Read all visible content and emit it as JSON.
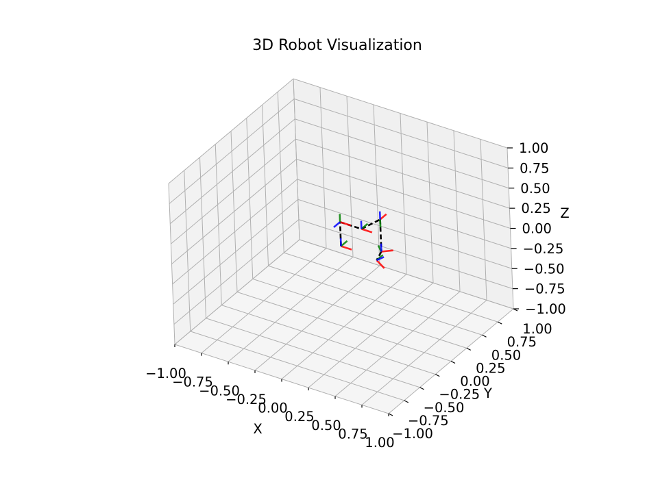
{
  "chart_data": {
    "type": "line",
    "title": "3D Robot Visualization",
    "xlabel": "X",
    "ylabel": "Y",
    "zlabel": "Z",
    "xlim": [
      -1.0,
      1.0
    ],
    "ylim": [
      -1.0,
      1.0
    ],
    "zlim": [
      -1.0,
      1.0
    ],
    "x_ticks": [
      "−1.00",
      "−0.75",
      "−0.50",
      "−0.25",
      "0.00",
      "0.25",
      "0.50",
      "0.75",
      "1.00"
    ],
    "y_ticks": [
      "−1.00",
      "−0.75",
      "−0.50",
      "−0.25",
      "0.00",
      "0.25",
      "0.50",
      "0.75",
      "1.00"
    ],
    "z_ticks": [
      "−1.00",
      "−0.75",
      "−0.50",
      "−0.25",
      "0.00",
      "0.25",
      "0.50",
      "0.75",
      "1.00"
    ],
    "grid": true,
    "colors": {
      "links": "#000000",
      "frame_x": "#ff0000",
      "frame_y": "#008000",
      "frame_z": "#0000ff",
      "pane_left": "#f2f2f2",
      "pane_back": "#f0f0f0",
      "pane_floor": "#f5f5f5",
      "grid": "#b0b0b0"
    },
    "links_style": "dashed",
    "frame_axis_length": 0.1,
    "joints": [
      {
        "x": 0.0,
        "y": 0.0,
        "z": 0.0
      },
      {
        "x": 0.0,
        "y": 0.0,
        "z": 0.3
      },
      {
        "x": 0.2,
        "y": 0.0,
        "z": 0.3
      },
      {
        "x": 0.35,
        "y": 0.05,
        "z": 0.45
      },
      {
        "x": 0.35,
        "y": 0.05,
        "z": 0.05
      },
      {
        "x": 0.32,
        "y": 0.02,
        "z": -0.05
      }
    ],
    "frames": [
      {
        "x": 0.0,
        "y": 0.0,
        "z": 0.0,
        "axes": [
          [
            1,
            0,
            0
          ],
          [
            0,
            1,
            0
          ],
          [
            0,
            0,
            1
          ]
        ]
      },
      {
        "x": 0.0,
        "y": 0.0,
        "z": 0.3,
        "axes": [
          [
            1,
            0,
            0
          ],
          [
            0,
            0,
            1
          ],
          [
            0,
            -1,
            0
          ]
        ]
      },
      {
        "x": 0.2,
        "y": 0.0,
        "z": 0.3,
        "axes": [
          [
            1,
            0,
            0
          ],
          [
            0,
            1,
            0
          ],
          [
            0,
            0,
            1
          ]
        ]
      },
      {
        "x": 0.35,
        "y": 0.05,
        "z": 0.45,
        "axes": [
          [
            0,
            1,
            0
          ],
          [
            0,
            0,
            -1
          ],
          [
            0,
            0,
            1
          ]
        ]
      },
      {
        "x": 0.35,
        "y": 0.05,
        "z": 0.05,
        "axes": [
          [
            0.7,
            0.7,
            0
          ],
          [
            -0.7,
            0.7,
            0
          ],
          [
            0,
            0,
            1
          ]
        ]
      },
      {
        "x": 0.32,
        "y": 0.02,
        "z": -0.05,
        "axes": [
          [
            0.7,
            0,
            -0.7
          ],
          [
            0,
            1,
            0
          ],
          [
            0.7,
            0,
            0.7
          ]
        ]
      }
    ]
  }
}
